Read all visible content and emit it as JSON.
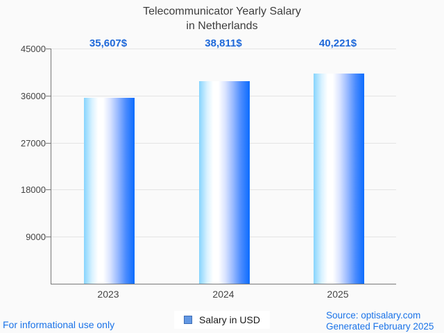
{
  "title": {
    "lines": [
      "Telecommunicator Yearly Salary",
      "in Netherlands"
    ]
  },
  "chart_data": {
    "type": "bar",
    "title": "Telecommunicator Yearly Salary in Netherlands",
    "categories": [
      "2023",
      "2024",
      "2025"
    ],
    "values": [
      35607,
      38811,
      40221
    ],
    "value_labels": [
      "35,607$",
      "38,811$",
      "40,221$"
    ],
    "series_name": "Salary in USD",
    "xlabel": "",
    "ylabel": "",
    "ylim": [
      0,
      45000
    ],
    "yticks": [
      45000,
      36000,
      27000,
      18000,
      9000
    ],
    "ytick_labels": [
      "45000",
      "36000",
      "27000",
      "18000",
      "9000"
    ],
    "grid": true,
    "legend_position": "bottom"
  },
  "legend": {
    "label": "Salary in USD"
  },
  "footer": {
    "left": "For informational use only",
    "source_line1": "Source: optisalary.com",
    "source_line2": "Generated February 2025"
  },
  "colors": {
    "background": "#fafafa",
    "title": "#3d3d3d",
    "annotation_blue": "#1e68d9",
    "footer_blue": "#1a73e8",
    "axis": "#777777",
    "gridline": "#e4e4e4",
    "bar_gradient_left": "#86d4fd",
    "bar_gradient_mid": "#ffffff",
    "bar_gradient_right": "#0c6cfe",
    "legend_swatch_fill": "#6398e3",
    "legend_swatch_border": "#3d6cb4"
  }
}
